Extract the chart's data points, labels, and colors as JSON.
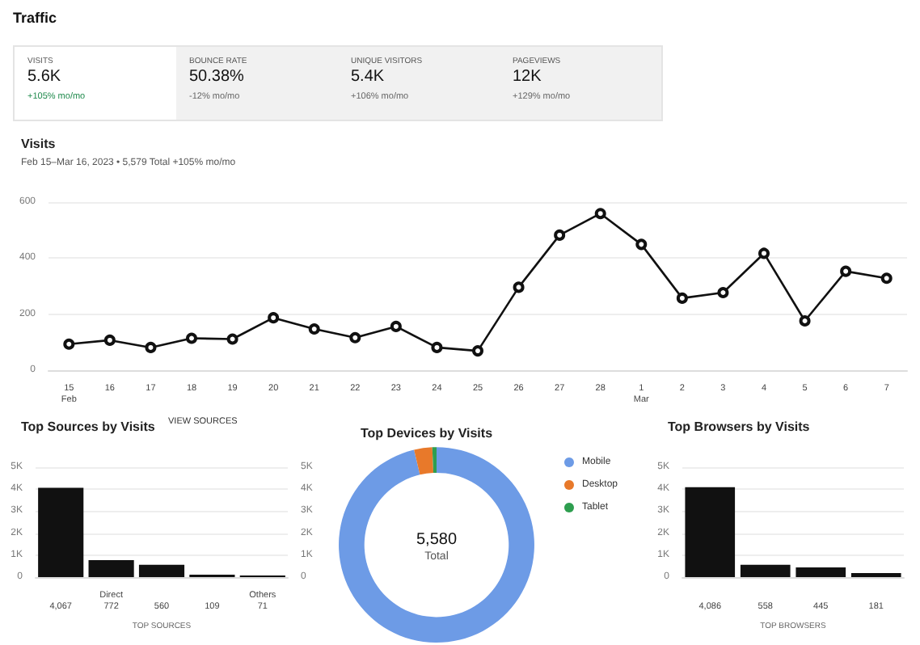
{
  "chart_data": [
    {
      "type": "other",
      "title": "Traffic",
      "annotations": [
        "VISITS",
        "5.6K",
        "+105% mo/mo",
        "BOUNCE RATE",
        "50.38%",
        "-12% mo/mo",
        "UNIQUE VISITORS",
        "5.4K",
        "+106% mo/mo",
        "PAGEVIEWS",
        "12K",
        "+129% mo/mo"
      ]
    },
    {
      "type": "line",
      "title": "Visits",
      "subtitle": "Feb 15–Mar 16, 2023 • 5,579 Total +105% mo/mo",
      "categories": [
        "15\nFeb",
        "16",
        "17",
        "18",
        "19",
        "20",
        "21",
        "22",
        "23",
        "24",
        "25",
        "26",
        "27",
        "28",
        "1\nMar",
        "2",
        "3",
        "4",
        "5",
        "6",
        "7"
      ],
      "series": [
        {
          "color": "#111111",
          "values": [
            93,
            107,
            81,
            114,
            111,
            187,
            147,
            116,
            156,
            81,
            69,
            296,
            482,
            559,
            449,
            257,
            277,
            417,
            176,
            353,
            328
          ]
        }
      ],
      "ylim": [
        0,
        600
      ],
      "yticks": [
        0,
        200,
        400,
        600
      ],
      "grid": "y",
      "marker": "circle",
      "line_style": "solid"
    },
    {
      "type": "bar",
      "title": "Top Sources by Visits",
      "annotations": [
        "VIEW SOURCES"
      ],
      "xlabel": "TOP SOURCES",
      "categories": [
        null,
        "Direct",
        null,
        null,
        "Others"
      ],
      "values": [
        4067,
        772,
        560,
        109,
        71
      ],
      "value_labels": [
        "4,067",
        "772",
        "560",
        "109",
        "71"
      ],
      "color": "#111111",
      "ylim": [
        0,
        5000
      ],
      "yticks": [
        0,
        {
          "value": 1000,
          "label": "1K"
        },
        {
          "value": 2000,
          "label": "2K"
        },
        {
          "value": 3000,
          "label": "3K"
        },
        {
          "value": 4000,
          "label": "4K"
        },
        {
          "value": 5000,
          "label": "5K"
        }
      ],
      "y2lim": [
        0,
        5000
      ],
      "y2ticks": [
        0,
        {
          "value": 1000,
          "label": "1K"
        },
        {
          "value": 2000,
          "label": "2K"
        },
        {
          "value": 3000,
          "label": "3K"
        },
        {
          "value": 4000,
          "label": "4K"
        },
        {
          "value": 5000,
          "label": "5K"
        }
      ],
      "grid": "y"
    },
    {
      "type": "donut",
      "title": "Top Devices by Visits",
      "categories": [
        "Mobile",
        "Desktop",
        "Tablet"
      ],
      "values": [
        96.3,
        3.0,
        0.7
      ],
      "colors": [
        "#6d9be6",
        "#e8792a",
        "#2e9e4f"
      ],
      "annotations": [
        "5,580",
        "Total"
      ],
      "legend": "right"
    },
    {
      "type": "bar",
      "title": "Top Browsers by Visits",
      "xlabel": "TOP BROWSERS",
      "categories": [
        null,
        null,
        null,
        null
      ],
      "values": [
        4086,
        558,
        445,
        181
      ],
      "value_labels": [
        "4,086",
        "558",
        "445",
        "181"
      ],
      "color": "#111111",
      "ylim": [
        0,
        5000
      ],
      "yticks": [
        0,
        {
          "value": 1000,
          "label": "1K"
        },
        {
          "value": 2000,
          "label": "2K"
        },
        {
          "value": 3000,
          "label": "3K"
        },
        {
          "value": 4000,
          "label": "4K"
        },
        {
          "value": 5000,
          "label": "5K"
        }
      ],
      "grid": "y"
    }
  ]
}
